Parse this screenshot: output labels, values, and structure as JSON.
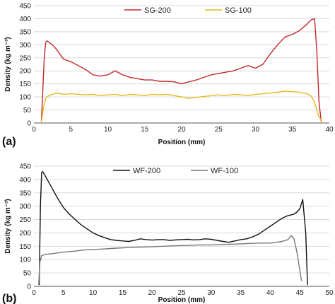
{
  "chart_data": [
    {
      "type": "line",
      "panel_label": "(a)",
      "xlabel": "Position (mm)",
      "ylabel": "Density (kg m⁻³)",
      "xlim": [
        0,
        40
      ],
      "ylim": [
        0,
        450
      ],
      "xticks": [
        0,
        5,
        10,
        15,
        20,
        25,
        30,
        35,
        40
      ],
      "yticks": [
        0,
        50,
        100,
        150,
        200,
        250,
        300,
        350,
        400,
        450
      ],
      "grid": "horizontal",
      "legend_position": "top-center",
      "series": [
        {
          "name": "SG-200",
          "color": "#c0282d",
          "x": [
            1.0,
            1.2,
            1.4,
            1.6,
            1.8,
            2.0,
            2.5,
            3.0,
            3.5,
            4.0,
            5.0,
            6.0,
            7.0,
            8.0,
            9.0,
            10.0,
            11.0,
            12.0,
            13.0,
            14.0,
            15.0,
            16.0,
            17.0,
            18.0,
            19.0,
            20.0,
            21.0,
            22.0,
            23.0,
            24.0,
            25.0,
            26.0,
            27.0,
            28.0,
            29.0,
            30.0,
            31.0,
            32.0,
            33.0,
            34.0,
            35.0,
            36.0,
            37.0,
            37.5,
            38.0,
            38.3,
            38.6,
            38.9
          ],
          "values": [
            5,
            120,
            250,
            310,
            315,
            310,
            300,
            285,
            265,
            245,
            235,
            220,
            205,
            185,
            180,
            185,
            200,
            185,
            175,
            170,
            165,
            165,
            160,
            160,
            158,
            150,
            158,
            165,
            175,
            185,
            190,
            195,
            200,
            210,
            220,
            210,
            225,
            265,
            300,
            330,
            340,
            355,
            380,
            395,
            400,
            280,
            80,
            5
          ]
        },
        {
          "name": "SG-100",
          "color": "#e8b820",
          "x": [
            1.0,
            1.3,
            1.6,
            2.0,
            3.0,
            4.0,
            5.0,
            6.0,
            7.0,
            8.0,
            9.0,
            10.0,
            11.0,
            12.0,
            13.0,
            14.0,
            15.0,
            16.0,
            17.0,
            18.0,
            19.0,
            20.0,
            21.0,
            22.0,
            23.0,
            24.0,
            25.0,
            26.0,
            27.0,
            28.0,
            29.0,
            30.0,
            31.0,
            32.0,
            33.0,
            34.0,
            35.0,
            36.0,
            37.0,
            37.5,
            38.0,
            38.5,
            39.0
          ],
          "values": [
            5,
            60,
            95,
            105,
            115,
            110,
            112,
            110,
            108,
            110,
            105,
            108,
            110,
            105,
            110,
            108,
            105,
            110,
            108,
            110,
            105,
            100,
            95,
            98,
            102,
            105,
            108,
            105,
            110,
            108,
            105,
            110,
            112,
            115,
            118,
            122,
            120,
            118,
            112,
            105,
            80,
            30,
            5
          ]
        }
      ]
    },
    {
      "type": "line",
      "panel_label": "(b)",
      "xlabel": "Position (mm)",
      "ylabel": "Density (kg m⁻³)",
      "xlim": [
        0,
        50
      ],
      "ylim": [
        0,
        450
      ],
      "xticks": [
        0,
        5,
        10,
        15,
        20,
        25,
        30,
        35,
        40,
        45,
        50
      ],
      "yticks": [
        0,
        50,
        100,
        150,
        200,
        250,
        300,
        350,
        400,
        450
      ],
      "grid": "horizontal",
      "legend_position": "top-center",
      "series": [
        {
          "name": "WF-200",
          "color": "#111111",
          "x": [
            0.9,
            1.1,
            1.3,
            1.5,
            2.0,
            3.0,
            4.0,
            5.0,
            6.0,
            7.0,
            8.0,
            9.0,
            10.0,
            11.0,
            12.0,
            13.0,
            14.0,
            15.0,
            16.0,
            17.0,
            18.0,
            19.0,
            20.0,
            21.0,
            22.0,
            23.0,
            24.0,
            25.0,
            26.0,
            27.0,
            28.0,
            29.0,
            30.0,
            31.0,
            32.0,
            33.0,
            34.0,
            35.0,
            36.0,
            37.0,
            38.0,
            39.0,
            40.0,
            41.0,
            42.0,
            43.0,
            44.0,
            44.5,
            45.0,
            45.5,
            46.0,
            46.3
          ],
          "values": [
            5,
            300,
            425,
            430,
            410,
            370,
            330,
            295,
            270,
            250,
            230,
            215,
            200,
            190,
            182,
            175,
            172,
            170,
            168,
            172,
            178,
            175,
            173,
            175,
            175,
            172,
            174,
            175,
            176,
            174,
            175,
            178,
            176,
            172,
            168,
            165,
            170,
            175,
            178,
            185,
            195,
            210,
            225,
            240,
            255,
            265,
            270,
            278,
            290,
            325,
            200,
            5
          ]
        },
        {
          "name": "WF-100",
          "color": "#777777",
          "x": [
            0.8,
            1.0,
            1.3,
            2.0,
            3.0,
            4.0,
            5.0,
            6.0,
            7.0,
            8.0,
            9.0,
            10.0,
            12.0,
            14.0,
            16.0,
            18.0,
            20.0,
            22.0,
            24.0,
            26.0,
            28.0,
            30.0,
            32.0,
            34.0,
            36.0,
            38.0,
            40.0,
            41.0,
            42.0,
            43.0,
            43.5,
            44.0,
            44.5,
            45.0,
            45.3
          ],
          "values": [
            5,
            90,
            115,
            120,
            122,
            125,
            128,
            130,
            132,
            135,
            137,
            138,
            140,
            143,
            145,
            147,
            148,
            150,
            152,
            153,
            155,
            155,
            157,
            158,
            160,
            162,
            162,
            165,
            168,
            175,
            190,
            180,
            130,
            60,
            20
          ]
        }
      ]
    }
  ]
}
